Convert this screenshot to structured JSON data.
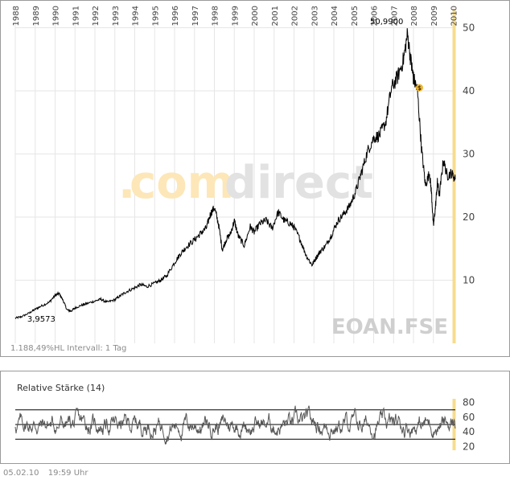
{
  "chart_data": [
    {
      "type": "line",
      "title": "",
      "symbol": "EOAN.FSE",
      "watermark": "comdirect",
      "info_label": "1.188,49%HL  Intervall: 1 Tag",
      "x_tick_labels": [
        "1988",
        "1989",
        "1990",
        "1991",
        "1992",
        "1993",
        "1994",
        "1995",
        "1996",
        "1997",
        "1998",
        "1999",
        "2000",
        "2001",
        "2002",
        "2003",
        "2004",
        "2005",
        "2006",
        "2007",
        "2008",
        "2009",
        "2010"
      ],
      "y_tick_labels": [
        "10",
        "20",
        "30",
        "40",
        "50"
      ],
      "ylim": [
        0,
        53
      ],
      "xlim": [
        1988.0,
        2010.1
      ],
      "grid": true,
      "y_axis_side": "right",
      "annotations": {
        "max_label": "50,9900",
        "min_label": "3,9573",
        "dividend_marker": "$"
      },
      "colors": {
        "line": "#000000",
        "highlight_band": "#f7dc8c",
        "marker": "#f0b429",
        "watermark_orange": "#fde7b8",
        "watermark_gray": "#e2e2e2"
      },
      "series": [
        {
          "x": [
            1988.0,
            1988.3,
            1988.7,
            1989.0,
            1989.3,
            1989.7,
            1990.0,
            1990.2,
            1990.4,
            1990.6,
            1990.8,
            1991.0,
            1991.3,
            1991.6,
            1992.0,
            1992.3,
            1992.6,
            1993.0,
            1993.3,
            1993.6,
            1994.0,
            1994.3,
            1994.6,
            1995.0,
            1995.3,
            1995.6,
            1996.0,
            1996.3,
            1996.6,
            1997.0,
            1997.3,
            1997.6,
            1997.8,
            1998.0,
            1998.2,
            1998.4,
            1998.6,
            1998.8,
            1999.0,
            1999.2,
            1999.5,
            1999.8,
            2000.0,
            2000.3,
            2000.6,
            2000.9,
            2001.2,
            2001.5,
            2001.8,
            2002.0,
            2002.3,
            2002.6,
            2002.9,
            2003.1,
            2003.3,
            2003.6,
            2003.9,
            2004.2,
            2004.5,
            2004.8,
            2005.1,
            2005.4,
            2005.7,
            2006.0,
            2006.3,
            2006.6,
            2006.9,
            2007.2,
            2007.5,
            2007.7,
            2007.9,
            2008.0,
            2008.2,
            2008.4,
            2008.6,
            2008.8,
            2008.9,
            2009.0,
            2009.1,
            2009.2,
            2009.3,
            2009.5,
            2009.7,
            2009.9,
            2010.1
          ],
          "y": [
            4.0,
            4.2,
            4.8,
            5.4,
            5.9,
            6.5,
            7.6,
            7.9,
            6.8,
            5.3,
            5.1,
            5.6,
            6.0,
            6.3,
            6.7,
            7.0,
            6.5,
            6.9,
            7.6,
            8.2,
            8.8,
            9.3,
            9.0,
            9.5,
            10.0,
            10.7,
            12.8,
            14.2,
            15.3,
            16.4,
            17.4,
            18.3,
            20.5,
            21.5,
            19.0,
            14.8,
            16.5,
            17.3,
            19.4,
            17.0,
            15.5,
            18.5,
            17.6,
            19.0,
            19.5,
            18.2,
            20.8,
            19.5,
            19.0,
            18.4,
            16.5,
            14.0,
            12.4,
            13.5,
            14.5,
            15.5,
            17.3,
            19.4,
            20.5,
            21.8,
            24.1,
            27.2,
            30.5,
            32.5,
            33.0,
            35.0,
            40.5,
            42.2,
            45.0,
            49.0,
            44.0,
            42.0,
            40.0,
            31.0,
            25.0,
            27.0,
            24.0,
            18.5,
            21.5,
            25.5,
            23.5,
            29.0,
            26.5,
            27.0,
            26.0
          ]
        }
      ]
    },
    {
      "type": "line",
      "title": "Relative Stärke (14)",
      "y_tick_labels": [
        "20",
        "40",
        "60",
        "80"
      ],
      "ylim": [
        15,
        85
      ],
      "reference_lines": [
        30,
        50,
        70
      ],
      "series": [
        {
          "x_range": [
            1988.0,
            2010.1
          ],
          "oscillation_center": 50,
          "oscillation_band": [
            22,
            78
          ]
        }
      ]
    }
  ],
  "footer": {
    "date": "05.02.10",
    "time": "19:59 Uhr"
  }
}
